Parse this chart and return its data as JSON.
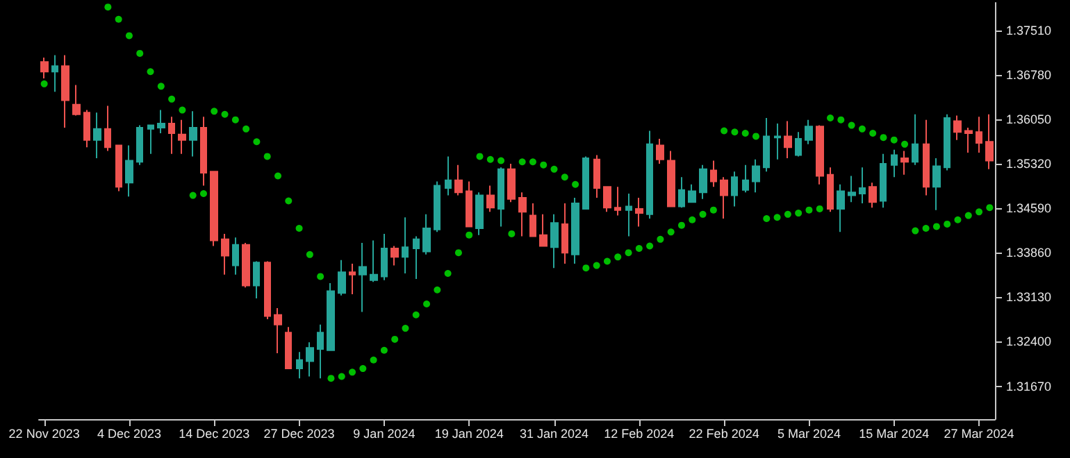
{
  "chart_data": {
    "type": "candlestick",
    "grid": false,
    "marker": "circle",
    "categories": [
      "22 Nov 2023",
      null,
      null,
      null,
      null,
      null,
      null,
      null,
      "4 Dec 2023",
      null,
      null,
      null,
      null,
      null,
      null,
      null,
      "14 Dec 2023",
      null,
      null,
      null,
      null,
      null,
      null,
      null,
      "27 Dec 2023",
      null,
      null,
      null,
      null,
      null,
      null,
      null,
      "9 Jan 2024",
      null,
      null,
      null,
      null,
      null,
      null,
      null,
      "19 Jan 2024",
      null,
      null,
      null,
      null,
      null,
      null,
      null,
      "31 Jan 2024",
      null,
      null,
      null,
      null,
      null,
      null,
      null,
      "12 Feb 2024",
      null,
      null,
      null,
      null,
      null,
      null,
      null,
      "22 Feb 2024",
      null,
      null,
      null,
      null,
      null,
      null,
      null,
      "5 Mar 2024",
      null,
      null,
      null,
      null,
      null,
      null,
      null,
      "15 Mar 2024",
      null,
      null,
      null,
      null,
      null,
      null,
      null,
      "27 Mar 2024",
      null
    ],
    "ylim": [
      1.3113,
      1.3796
    ],
    "yticks": [
      {
        "value": 1.3167,
        "label": "1.31670"
      },
      {
        "value": 1.324,
        "label": "1.32400"
      },
      {
        "value": 1.3313,
        "label": "1.33130"
      },
      {
        "value": 1.3386,
        "label": "1.33860"
      },
      {
        "value": 1.3459,
        "label": "1.34590"
      },
      {
        "value": 1.3532,
        "label": "1.35320"
      },
      {
        "value": 1.3605,
        "label": "1.36050"
      },
      {
        "value": 1.3678,
        "label": "1.36780"
      },
      {
        "value": 1.3751,
        "label": "1.37510"
      }
    ],
    "series": [
      {
        "type": "candlestick",
        "ohlc": [
          [
            1.3699,
            1.3706,
            1.3672,
            1.3683
          ],
          [
            1.3683,
            1.371,
            1.365,
            1.3692
          ],
          [
            1.3692,
            1.371,
            1.3591,
            1.3636
          ],
          [
            1.3629,
            1.3661,
            1.3611,
            1.3613
          ],
          [
            1.3616,
            1.362,
            1.3559,
            1.3571
          ],
          [
            1.3571,
            1.3616,
            1.3541,
            1.3589
          ],
          [
            1.3589,
            1.3627,
            1.3553,
            1.3559
          ],
          [
            1.3562,
            1.3562,
            1.3487,
            1.3494
          ],
          [
            1.3501,
            1.3562,
            1.3478,
            1.3537
          ],
          [
            1.3535,
            1.3595,
            1.353,
            1.3591
          ],
          [
            1.3589,
            1.3595,
            1.3548,
            1.3595
          ],
          [
            1.3591,
            1.362,
            1.3582,
            1.3598
          ],
          [
            1.3598,
            1.3609,
            1.3548,
            1.3582
          ],
          [
            1.358,
            1.3604,
            1.3548,
            1.3571
          ],
          [
            1.3571,
            1.3618,
            1.3544,
            1.3591
          ],
          [
            1.3591,
            1.3609,
            1.3496,
            1.3517
          ],
          [
            1.3519,
            1.3519,
            1.3397,
            1.3406
          ],
          [
            1.3408,
            1.3417,
            1.335,
            1.3381
          ],
          [
            1.3365,
            1.3411,
            1.335,
            1.3399
          ],
          [
            1.3399,
            1.3402,
            1.3329,
            1.3332
          ],
          [
            1.3332,
            1.3372,
            1.3311,
            1.337
          ],
          [
            1.337,
            1.3372,
            1.3277,
            1.3282
          ],
          [
            1.3284,
            1.3295,
            1.3221,
            1.3268
          ],
          [
            1.3255,
            1.3264,
            1.3196,
            1.3196
          ],
          [
            1.3196,
            1.3223,
            1.318,
            1.321
          ],
          [
            1.3208,
            1.3239,
            1.3183,
            1.323
          ],
          [
            1.3228,
            1.3268,
            1.318,
            1.3255
          ],
          [
            1.3226,
            1.3336,
            1.3226,
            1.3323
          ],
          [
            1.332,
            1.3374,
            1.3316,
            1.3354
          ],
          [
            1.3354,
            1.3368,
            1.3318,
            1.335
          ],
          [
            1.335,
            1.3402,
            1.3289,
            1.3363
          ],
          [
            1.3341,
            1.3406,
            1.3338,
            1.335
          ],
          [
            1.3347,
            1.3417,
            1.3341,
            1.3393
          ],
          [
            1.3393,
            1.3397,
            1.3365,
            1.3379
          ],
          [
            1.3379,
            1.3444,
            1.3352,
            1.3395
          ],
          [
            1.3393,
            1.3413,
            1.3343,
            1.3408
          ],
          [
            1.3388,
            1.3449,
            1.3383,
            1.3426
          ],
          [
            1.3424,
            1.3503,
            1.342,
            1.3496
          ],
          [
            1.3492,
            1.3544,
            1.348,
            1.3505
          ],
          [
            1.3505,
            1.353,
            1.348,
            1.3485
          ],
          [
            1.3487,
            1.3503,
            1.3429,
            1.3429
          ],
          [
            1.3426,
            1.3485,
            1.3415,
            1.348
          ],
          [
            1.348,
            1.3496,
            1.3453,
            1.346
          ],
          [
            1.3458,
            1.3526,
            1.3429,
            1.3523
          ],
          [
            1.3523,
            1.3532,
            1.3469,
            1.3474
          ],
          [
            1.3476,
            1.3485,
            1.3413,
            1.3453
          ],
          [
            1.3447,
            1.3467,
            1.3413,
            1.3413
          ],
          [
            1.3415,
            1.3449,
            1.3397,
            1.3397
          ],
          [
            1.3395,
            1.3449,
            1.3361,
            1.3435
          ],
          [
            1.3433,
            1.3467,
            1.3368,
            1.3386
          ],
          [
            1.3383,
            1.3476,
            1.3368,
            1.3467
          ],
          [
            1.3458,
            1.3544,
            1.3458,
            1.3541
          ],
          [
            1.3539,
            1.3546,
            1.3476,
            1.3492
          ],
          [
            1.3494,
            1.3494,
            1.3453,
            1.346
          ],
          [
            1.346,
            1.3494,
            1.3447,
            1.3456
          ],
          [
            1.3456,
            1.3483,
            1.3413,
            1.3462
          ],
          [
            1.3458,
            1.3476,
            1.3429,
            1.3451
          ],
          [
            1.3449,
            1.3586,
            1.3442,
            1.3564
          ],
          [
            1.3562,
            1.3573,
            1.3532,
            1.3539
          ],
          [
            1.3537,
            1.3553,
            1.3462,
            1.3462
          ],
          [
            1.3462,
            1.351,
            1.346,
            1.3489
          ],
          [
            1.3469,
            1.3498,
            1.3469,
            1.3487
          ],
          [
            1.3485,
            1.353,
            1.3474,
            1.3523
          ],
          [
            1.3521,
            1.3537,
            1.3494,
            1.3503
          ],
          [
            1.3505,
            1.351,
            1.3442,
            1.348
          ],
          [
            1.348,
            1.3519,
            1.3462,
            1.351
          ],
          [
            1.3489,
            1.353,
            1.3485,
            1.3505
          ],
          [
            1.3503,
            1.3539,
            1.3485,
            1.3528
          ],
          [
            1.3526,
            1.3607,
            1.3519,
            1.3577
          ],
          [
            1.3575,
            1.3598,
            1.3539,
            1.3577
          ],
          [
            1.3577,
            1.3602,
            1.3541,
            1.3559
          ],
          [
            1.3546,
            1.3584,
            1.3544,
            1.3573
          ],
          [
            1.3571,
            1.3604,
            1.3564,
            1.3593
          ],
          [
            1.3593,
            1.3595,
            1.3498,
            1.3512
          ],
          [
            1.3514,
            1.3526,
            1.3453,
            1.3458
          ],
          [
            1.3458,
            1.3498,
            1.342,
            1.3487
          ],
          [
            1.348,
            1.3512,
            1.3469,
            1.3485
          ],
          [
            1.3483,
            1.3526,
            1.3467,
            1.3492
          ],
          [
            1.3494,
            1.3501,
            1.346,
            1.3469
          ],
          [
            1.3471,
            1.3548,
            1.346,
            1.3532
          ],
          [
            1.353,
            1.3555,
            1.351,
            1.3546
          ],
          [
            1.3541,
            1.3553,
            1.3514,
            1.3535
          ],
          [
            1.3535,
            1.3613,
            1.353,
            1.3564
          ],
          [
            1.3564,
            1.3604,
            1.348,
            1.3494
          ],
          [
            1.3494,
            1.3541,
            1.3456,
            1.3528
          ],
          [
            1.3526,
            1.3613,
            1.3521,
            1.3607
          ],
          [
            1.3602,
            1.3611,
            1.3571,
            1.3584
          ],
          [
            1.3586,
            1.3591,
            1.355,
            1.3582
          ],
          [
            1.3584,
            1.3609,
            1.355,
            1.3566
          ],
          [
            1.3568,
            1.3613,
            1.3523,
            1.3537
          ]
        ],
        "colors": [
          "#ef5350",
          "#26a69a",
          "#ef5350",
          "#ef5350",
          "#ef5350",
          "#26a69a",
          "#ef5350",
          "#ef5350",
          "#26a69a",
          "#26a69a",
          "#26a69a",
          "#26a69a",
          "#ef5350",
          "#ef5350",
          "#26a69a",
          "#ef5350",
          "#ef5350",
          "#ef5350",
          "#26a69a",
          "#ef5350",
          "#26a69a",
          "#ef5350",
          "#ef5350",
          "#ef5350",
          "#26a69a",
          "#26a69a",
          "#26a69a",
          "#26a69a",
          "#26a69a",
          "#ef5350",
          "#26a69a",
          "#26a69a",
          "#26a69a",
          "#ef5350",
          "#26a69a",
          "#26a69a",
          "#26a69a",
          "#26a69a",
          "#26a69a",
          "#ef5350",
          "#ef5350",
          "#26a69a",
          "#ef5350",
          "#26a69a",
          "#ef5350",
          "#ef5350",
          "#ef5350",
          "#ef5350",
          "#26a69a",
          "#ef5350",
          "#26a69a",
          "#26a69a",
          "#ef5350",
          "#ef5350",
          "#ef5350",
          "#26a69a",
          "#ef5350",
          "#26a69a",
          "#ef5350",
          "#ef5350",
          "#26a69a",
          "#26a69a",
          "#26a69a",
          "#ef5350",
          "#ef5350",
          "#26a69a",
          "#26a69a",
          "#26a69a",
          "#26a69a",
          "#26a69a",
          "#ef5350",
          "#26a69a",
          "#26a69a",
          "#ef5350",
          "#ef5350",
          "#26a69a",
          "#26a69a",
          "#26a69a",
          "#ef5350",
          "#26a69a",
          "#26a69a",
          "#ef5350",
          "#26a69a",
          "#ef5350",
          "#26a69a",
          "#26a69a",
          "#ef5350",
          "#ef5350",
          "#ef5350",
          "#ef5350"
        ]
      },
      {
        "type": "scatter",
        "color": "#00ee00",
        "values": [
          1.3663,
          null,
          null,
          null,
          null,
          null,
          1.3789,
          1.3769,
          1.3742,
          1.3713,
          1.3683,
          1.3659,
          1.3638,
          1.362,
          1.348,
          1.3483,
          1.3618,
          1.3613,
          1.3604,
          1.3589,
          1.3568,
          1.3544,
          1.3512,
          1.3471,
          1.3426,
          1.3383,
          1.3347,
          1.318,
          1.3183,
          1.319,
          1.3196,
          1.321,
          1.3226,
          1.3244,
          1.3262,
          1.3284,
          1.3302,
          1.3325,
          1.3352,
          1.3386,
          1.3415,
          1.3544,
          1.3539,
          1.3537,
          1.3417,
          1.3535,
          1.3535,
          1.353,
          1.3523,
          1.351,
          1.3498,
          1.3361,
          1.3365,
          1.3372,
          1.3379,
          1.3386,
          1.3393,
          1.3397,
          1.3408,
          1.342,
          1.3431,
          1.344,
          1.3449,
          1.3456,
          1.3586,
          1.3584,
          1.3582,
          1.3577,
          1.3442,
          1.3444,
          1.3449,
          1.3451,
          1.3456,
          1.3458,
          1.3607,
          1.3604,
          1.3595,
          1.3589,
          1.3582,
          1.3575,
          1.3571,
          1.3564,
          1.3422,
          1.3426,
          1.3429,
          1.3433,
          1.344,
          1.3447,
          1.3453,
          1.346
        ]
      }
    ]
  }
}
